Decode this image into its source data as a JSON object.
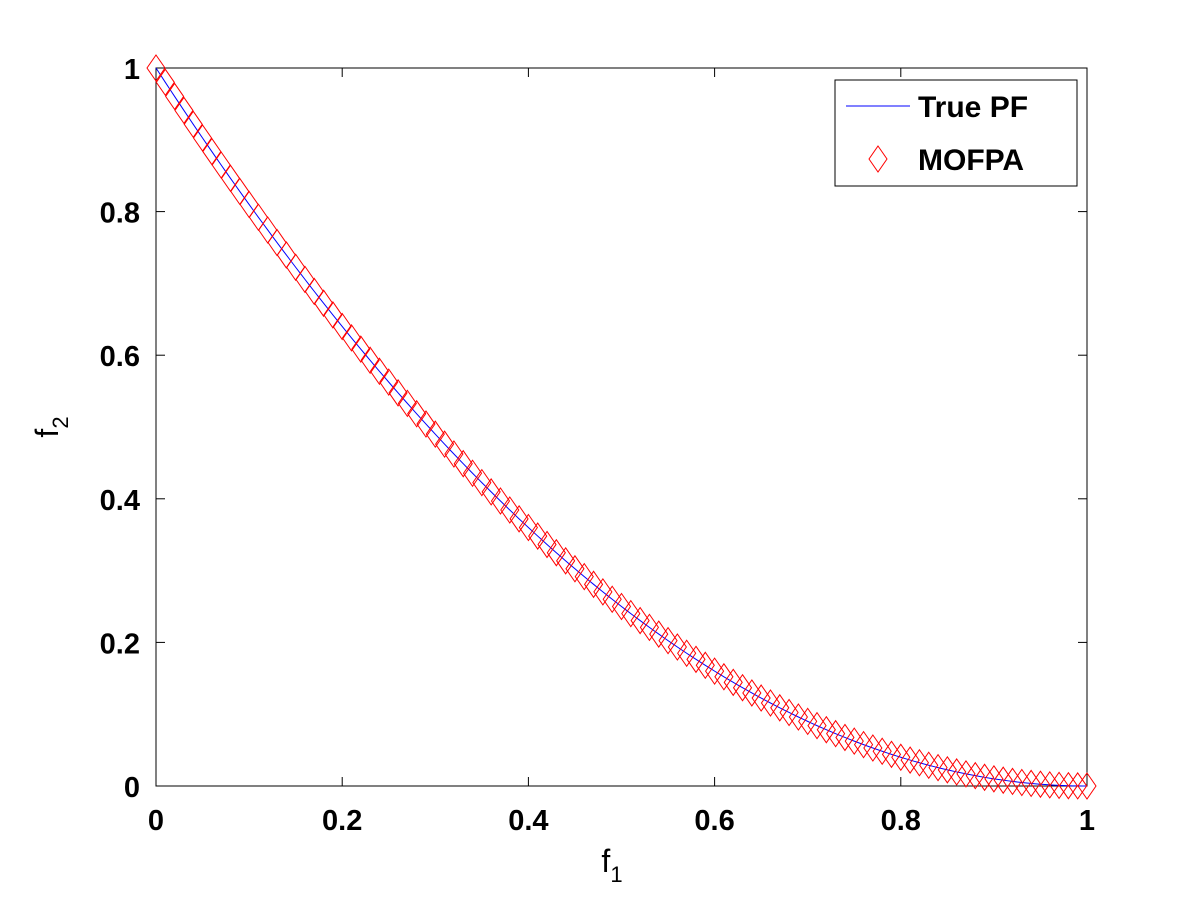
{
  "chart_data": {
    "type": "line",
    "title": "",
    "xlabel": {
      "base": "f",
      "subscript": "1"
    },
    "ylabel": {
      "base": "f",
      "subscript": "2"
    },
    "xlim": [
      0,
      1
    ],
    "ylim": [
      0,
      1
    ],
    "xticks": [
      0,
      0.2,
      0.4,
      0.6,
      0.8,
      1
    ],
    "xtick_labels": [
      "0",
      "0.2",
      "0.4",
      "0.6",
      "0.8",
      "1"
    ],
    "yticks": [
      0,
      0.2,
      0.4,
      0.6,
      0.8,
      1
    ],
    "ytick_labels": [
      "0",
      "0.2",
      "0.4",
      "0.6",
      "0.8",
      "1"
    ],
    "grid": false,
    "legend_position": "top-right",
    "series": [
      {
        "name": "True PF",
        "kind": "line",
        "color": "#0000ff",
        "relation": "f2 = (1 - f1)^2",
        "x": [
          0,
          0.05,
          0.1,
          0.15,
          0.2,
          0.25,
          0.3,
          0.35,
          0.4,
          0.45,
          0.5,
          0.55,
          0.6,
          0.65,
          0.7,
          0.75,
          0.8,
          0.85,
          0.9,
          0.95,
          1
        ],
        "y": [
          1,
          0.9025,
          0.81,
          0.7225,
          0.64,
          0.5625,
          0.49,
          0.4225,
          0.36,
          0.3025,
          0.25,
          0.2025,
          0.16,
          0.1225,
          0.09,
          0.0625,
          0.04,
          0.0225,
          0.01,
          0.0025,
          0
        ]
      },
      {
        "name": "MOFPA",
        "kind": "scatter",
        "marker": "diamond",
        "color": "#ff0000",
        "relation": "f2 = (1 - f1)^2",
        "x": [
          0,
          0.01,
          0.02,
          0.03,
          0.04,
          0.05,
          0.06,
          0.07,
          0.08,
          0.09,
          0.1,
          0.11,
          0.12,
          0.13,
          0.14,
          0.15,
          0.16,
          0.17,
          0.18,
          0.19,
          0.2,
          0.21,
          0.22,
          0.23,
          0.24,
          0.25,
          0.26,
          0.27,
          0.28,
          0.29,
          0.3,
          0.31,
          0.32,
          0.33,
          0.34,
          0.35,
          0.36,
          0.37,
          0.38,
          0.39,
          0.4,
          0.41,
          0.42,
          0.43,
          0.44,
          0.45,
          0.46,
          0.47,
          0.48,
          0.49,
          0.5,
          0.51,
          0.52,
          0.53,
          0.54,
          0.55,
          0.56,
          0.57,
          0.58,
          0.59,
          0.6,
          0.61,
          0.62,
          0.63,
          0.64,
          0.65,
          0.66,
          0.67,
          0.68,
          0.69,
          0.7,
          0.71,
          0.72,
          0.73,
          0.74,
          0.75,
          0.76,
          0.77,
          0.78,
          0.79,
          0.8,
          0.81,
          0.82,
          0.83,
          0.84,
          0.85,
          0.86,
          0.87,
          0.88,
          0.89,
          0.9,
          0.91,
          0.92,
          0.93,
          0.94,
          0.95,
          0.96,
          0.97,
          0.98,
          0.99,
          1
        ]
      }
    ]
  }
}
